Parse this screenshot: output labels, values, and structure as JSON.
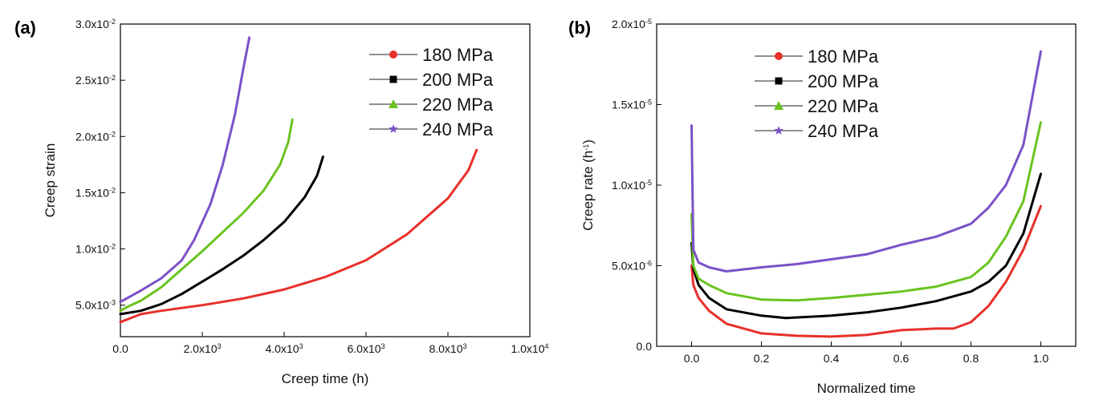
{
  "chart_data": [
    {
      "panel": "(a)",
      "type": "line",
      "xlabel": "Creep time (h)",
      "ylabel": "Creep strain",
      "xlim": [
        0,
        10000
      ],
      "ylim": [
        0.0022,
        0.03
      ],
      "x_ticks": [
        0,
        2000,
        4000,
        6000,
        8000,
        10000
      ],
      "x_tick_labels": [
        {
          "base": "0.0",
          "exp": ""
        },
        {
          "base": "2.0x10",
          "exp": "3"
        },
        {
          "base": "4.0x10",
          "exp": "3"
        },
        {
          "base": "6.0x10",
          "exp": "3"
        },
        {
          "base": "8.0x10",
          "exp": "3"
        },
        {
          "base": "1.0x10",
          "exp": "4"
        }
      ],
      "y_ticks": [
        0.005,
        0.01,
        0.015,
        0.02,
        0.025,
        0.03
      ],
      "y_tick_labels": [
        {
          "base": "5.0x10",
          "exp": "-3"
        },
        {
          "base": "1.0x10",
          "exp": "-2"
        },
        {
          "base": "1.5x10",
          "exp": "-2"
        },
        {
          "base": "2.0x10",
          "exp": "-2"
        },
        {
          "base": "2.5x10",
          "exp": "-2"
        },
        {
          "base": "3.0x10",
          "exp": "-2"
        }
      ],
      "legend_position": "top-right",
      "series": [
        {
          "name": "180 MPa",
          "color": "#e8302a",
          "marker": "circle",
          "x": [
            0,
            500,
            1000,
            2000,
            3000,
            4000,
            5000,
            6000,
            7000,
            8000,
            8500,
            8700
          ],
          "y": [
            0.0035,
            0.0042,
            0.0045,
            0.005,
            0.0056,
            0.0064,
            0.0075,
            0.009,
            0.0113,
            0.0145,
            0.017,
            0.0188
          ]
        },
        {
          "name": "200 MPa",
          "color": "#000000",
          "marker": "square",
          "x": [
            0,
            500,
            1000,
            1500,
            2000,
            2500,
            3000,
            3500,
            4000,
            4500,
            4800,
            4950
          ],
          "y": [
            0.0042,
            0.0045,
            0.0051,
            0.006,
            0.0071,
            0.0082,
            0.0094,
            0.0108,
            0.0124,
            0.0146,
            0.0165,
            0.0182
          ]
        },
        {
          "name": "220 MPa",
          "color": "#6ac31f",
          "marker": "triangle",
          "x": [
            0,
            200,
            500,
            1000,
            1500,
            2000,
            2500,
            3000,
            3500,
            3900,
            4100,
            4200
          ],
          "y": [
            0.0045,
            0.0049,
            0.0054,
            0.0066,
            0.0082,
            0.0098,
            0.0115,
            0.0132,
            0.0152,
            0.0175,
            0.0195,
            0.0215
          ]
        },
        {
          "name": "240 MPa",
          "color": "#7b52c8",
          "marker": "star",
          "x": [
            0,
            200,
            500,
            1000,
            1500,
            1800,
            2200,
            2500,
            2800,
            3000,
            3150
          ],
          "y": [
            0.0053,
            0.0057,
            0.0063,
            0.0074,
            0.009,
            0.0108,
            0.014,
            0.0175,
            0.022,
            0.026,
            0.0288
          ]
        }
      ]
    },
    {
      "panel": "(b)",
      "type": "line",
      "xlabel": "Normalized time",
      "ylabel": "Creep rate (h",
      "ylabel_sup": "-1",
      "ylabel_end": ")",
      "xlim": [
        -0.1,
        1.1
      ],
      "ylim": [
        0,
        2e-05
      ],
      "x_ticks": [
        0.0,
        0.2,
        0.4,
        0.6,
        0.8,
        1.0
      ],
      "x_tick_labels": [
        "0.0",
        "0.2",
        "0.4",
        "0.6",
        "0.8",
        "1.0"
      ],
      "y_ticks": [
        0,
        5e-06,
        1e-05,
        1.5e-05,
        2e-05
      ],
      "y_tick_labels": [
        {
          "base": "0.0",
          "exp": ""
        },
        {
          "base": "5.0x10",
          "exp": "-6"
        },
        {
          "base": "1.0x10",
          "exp": "-5"
        },
        {
          "base": "1.5x10",
          "exp": "-5"
        },
        {
          "base": "2.0x10",
          "exp": "-5"
        }
      ],
      "legend_position": "top-left",
      "series": [
        {
          "name": "180 MPa",
          "color": "#e8302a",
          "marker": "circle",
          "x": [
            0,
            0.005,
            0.02,
            0.05,
            0.1,
            0.2,
            0.3,
            0.4,
            0.5,
            0.6,
            0.7,
            0.75,
            0.8,
            0.85,
            0.9,
            0.95,
            1.0
          ],
          "y": [
            5e-06,
            3.8e-06,
            3e-06,
            2.2e-06,
            1.4e-06,
            8e-07,
            6.5e-07,
            6e-07,
            7e-07,
            1e-06,
            1.1e-06,
            1.1e-06,
            1.5e-06,
            2.5e-06,
            4e-06,
            6e-06,
            8.7e-06
          ]
        },
        {
          "name": "200 MPa",
          "color": "#000000",
          "marker": "square",
          "x": [
            0,
            0.005,
            0.02,
            0.05,
            0.1,
            0.2,
            0.27,
            0.4,
            0.5,
            0.6,
            0.7,
            0.8,
            0.85,
            0.9,
            0.95,
            1.0
          ],
          "y": [
            6.4e-06,
            4.8e-06,
            3.8e-06,
            3e-06,
            2.3e-06,
            1.9e-06,
            1.75e-06,
            1.9e-06,
            2.1e-06,
            2.4e-06,
            2.8e-06,
            3.4e-06,
            4e-06,
            5e-06,
            7e-06,
            1.07e-05
          ]
        },
        {
          "name": "220 MPa",
          "color": "#6ac31f",
          "marker": "triangle",
          "x": [
            0,
            0.005,
            0.02,
            0.05,
            0.1,
            0.2,
            0.3,
            0.4,
            0.5,
            0.6,
            0.7,
            0.8,
            0.85,
            0.9,
            0.95,
            1.0
          ],
          "y": [
            8.2e-06,
            5e-06,
            4.2e-06,
            3.8e-06,
            3.3e-06,
            2.9e-06,
            2.85e-06,
            3e-06,
            3.2e-06,
            3.4e-06,
            3.7e-06,
            4.3e-06,
            5.2e-06,
            6.8e-06,
            9e-06,
            1.39e-05
          ]
        },
        {
          "name": "240 MPa",
          "color": "#7b52c8",
          "marker": "star",
          "x": [
            0,
            0.005,
            0.02,
            0.05,
            0.1,
            0.2,
            0.3,
            0.4,
            0.5,
            0.6,
            0.7,
            0.8,
            0.85,
            0.9,
            0.95,
            1.0
          ],
          "y": [
            1.37e-05,
            6e-06,
            5.2e-06,
            4.9e-06,
            4.65e-06,
            4.9e-06,
            5.1e-06,
            5.4e-06,
            5.7e-06,
            6.3e-06,
            6.8e-06,
            7.6e-06,
            8.6e-06,
            1e-05,
            1.25e-05,
            1.83e-05
          ]
        }
      ]
    }
  ]
}
